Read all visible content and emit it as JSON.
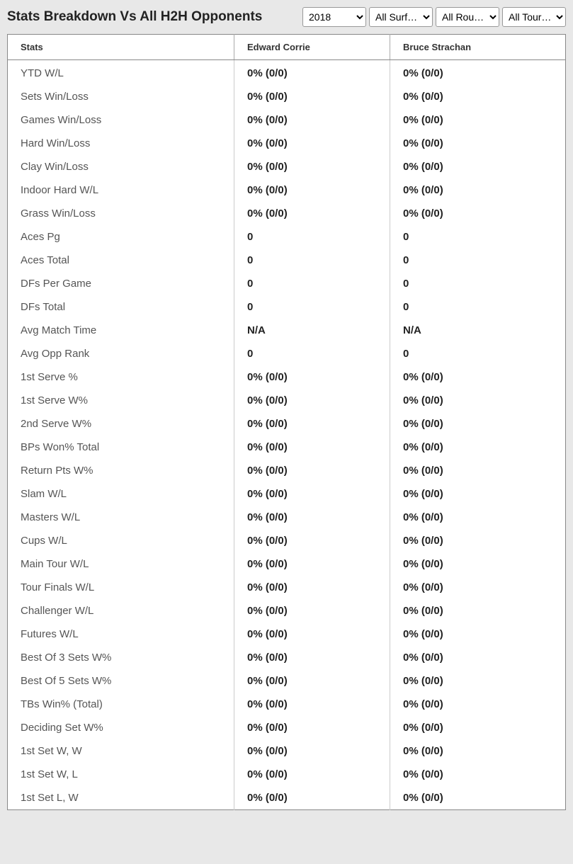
{
  "header": {
    "title": "Stats Breakdown Vs All H2H Opponents"
  },
  "filters": {
    "year": {
      "selected": "2018",
      "options": [
        "2018"
      ]
    },
    "surface": {
      "selected": "All Surf…",
      "options": [
        "All Surf…"
      ]
    },
    "round": {
      "selected": "All Rou…",
      "options": [
        "All Rou…"
      ]
    },
    "tour": {
      "selected": "All Tour…",
      "options": [
        "All Tour…"
      ]
    }
  },
  "table": {
    "columns": [
      "Stats",
      "Edward Corrie",
      "Bruce Strachan"
    ],
    "rows": [
      {
        "label": "YTD W/L",
        "p1": "0% (0/0)",
        "p2": "0% (0/0)"
      },
      {
        "label": "Sets Win/Loss",
        "p1": "0% (0/0)",
        "p2": "0% (0/0)"
      },
      {
        "label": "Games Win/Loss",
        "p1": "0% (0/0)",
        "p2": "0% (0/0)"
      },
      {
        "label": "Hard Win/Loss",
        "p1": "0% (0/0)",
        "p2": "0% (0/0)"
      },
      {
        "label": "Clay Win/Loss",
        "p1": "0% (0/0)",
        "p2": "0% (0/0)"
      },
      {
        "label": "Indoor Hard W/L",
        "p1": "0% (0/0)",
        "p2": "0% (0/0)"
      },
      {
        "label": "Grass Win/Loss",
        "p1": "0% (0/0)",
        "p2": "0% (0/0)"
      },
      {
        "label": "Aces Pg",
        "p1": "0",
        "p2": "0"
      },
      {
        "label": "Aces Total",
        "p1": "0",
        "p2": "0"
      },
      {
        "label": "DFs Per Game",
        "p1": "0",
        "p2": "0"
      },
      {
        "label": "DFs Total",
        "p1": "0",
        "p2": "0"
      },
      {
        "label": "Avg Match Time",
        "p1": "N/A",
        "p2": "N/A"
      },
      {
        "label": "Avg Opp Rank",
        "p1": "0",
        "p2": "0"
      },
      {
        "label": "1st Serve %",
        "p1": "0% (0/0)",
        "p2": "0% (0/0)"
      },
      {
        "label": "1st Serve W%",
        "p1": "0% (0/0)",
        "p2": "0% (0/0)"
      },
      {
        "label": "2nd Serve W%",
        "p1": "0% (0/0)",
        "p2": "0% (0/0)"
      },
      {
        "label": "BPs Won% Total",
        "p1": "0% (0/0)",
        "p2": "0% (0/0)"
      },
      {
        "label": "Return Pts W%",
        "p1": "0% (0/0)",
        "p2": "0% (0/0)"
      },
      {
        "label": "Slam W/L",
        "p1": "0% (0/0)",
        "p2": "0% (0/0)"
      },
      {
        "label": "Masters W/L",
        "p1": "0% (0/0)",
        "p2": "0% (0/0)"
      },
      {
        "label": "Cups W/L",
        "p1": "0% (0/0)",
        "p2": "0% (0/0)"
      },
      {
        "label": "Main Tour W/L",
        "p1": "0% (0/0)",
        "p2": "0% (0/0)"
      },
      {
        "label": "Tour Finals W/L",
        "p1": "0% (0/0)",
        "p2": "0% (0/0)"
      },
      {
        "label": "Challenger W/L",
        "p1": "0% (0/0)",
        "p2": "0% (0/0)"
      },
      {
        "label": "Futures W/L",
        "p1": "0% (0/0)",
        "p2": "0% (0/0)"
      },
      {
        "label": "Best Of 3 Sets W%",
        "p1": "0% (0/0)",
        "p2": "0% (0/0)"
      },
      {
        "label": "Best Of 5 Sets W%",
        "p1": "0% (0/0)",
        "p2": "0% (0/0)"
      },
      {
        "label": "TBs Win% (Total)",
        "p1": "0% (0/0)",
        "p2": "0% (0/0)"
      },
      {
        "label": "Deciding Set W%",
        "p1": "0% (0/0)",
        "p2": "0% (0/0)"
      },
      {
        "label": "1st Set W, W",
        "p1": "0% (0/0)",
        "p2": "0% (0/0)"
      },
      {
        "label": "1st Set W, L",
        "p1": "0% (0/0)",
        "p2": "0% (0/0)"
      },
      {
        "label": "1st Set L, W",
        "p1": "0% (0/0)",
        "p2": "0% (0/0)"
      }
    ]
  }
}
